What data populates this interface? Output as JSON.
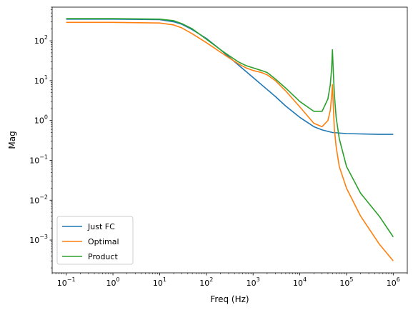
{
  "chart_data": {
    "type": "line",
    "title": "",
    "xlabel": "Freq (Hz)",
    "ylabel": "Mag",
    "xscale": "log",
    "yscale": "log",
    "xlim": [
      0.05,
      2000000
    ],
    "ylim": [
      0.00015,
      700
    ],
    "x_ticks": [
      {
        "value": 0.1,
        "base": "10",
        "exp": "−1"
      },
      {
        "value": 1,
        "base": "10",
        "exp": "0"
      },
      {
        "value": 10,
        "base": "10",
        "exp": "1"
      },
      {
        "value": 100,
        "base": "10",
        "exp": "2"
      },
      {
        "value": 1000,
        "base": "10",
        "exp": "3"
      },
      {
        "value": 10000,
        "base": "10",
        "exp": "4"
      },
      {
        "value": 100000,
        "base": "10",
        "exp": "5"
      },
      {
        "value": 1000000,
        "base": "10",
        "exp": "6"
      }
    ],
    "y_ticks": [
      {
        "value": 0.001,
        "base": "10",
        "exp": "−3"
      },
      {
        "value": 0.01,
        "base": "10",
        "exp": "−2"
      },
      {
        "value": 0.1,
        "base": "10",
        "exp": "−1"
      },
      {
        "value": 1,
        "base": "10",
        "exp": "0"
      },
      {
        "value": 10,
        "base": "10",
        "exp": "1"
      },
      {
        "value": 100,
        "base": "10",
        "exp": "2"
      }
    ],
    "grid": false,
    "legend_position": "lower-left",
    "series": [
      {
        "name": "Just FC",
        "color": "#1f77b4",
        "x": [
          0.1,
          1,
          10,
          20,
          30,
          50,
          100,
          200,
          300,
          500,
          1000,
          2000,
          3000,
          5000,
          10000,
          20000,
          30000,
          50000,
          100000,
          200000,
          500000,
          1000000
        ],
        "y": [
          350,
          350,
          340,
          300,
          260,
          190,
          115,
          60,
          40,
          24,
          12,
          6,
          4,
          2.3,
          1.2,
          0.7,
          0.58,
          0.5,
          0.47,
          0.46,
          0.45,
          0.45
        ]
      },
      {
        "name": "Optimal",
        "color": "#ff7f0e",
        "x": [
          0.1,
          1,
          10,
          20,
          30,
          50,
          100,
          200,
          300,
          500,
          700,
          1000,
          1500,
          2000,
          3000,
          5000,
          10000,
          20000,
          30000,
          40000,
          45000,
          48000,
          50000,
          52000,
          55000,
          60000,
          70000,
          100000,
          200000,
          500000,
          1000000
        ],
        "y": [
          290,
          290,
          280,
          250,
          210,
          150,
          90,
          52,
          38,
          26,
          21,
          18,
          16,
          14,
          10,
          5.5,
          2.2,
          0.85,
          0.7,
          1.0,
          1.8,
          4.0,
          8.0,
          2.5,
          0.6,
          0.22,
          0.07,
          0.02,
          0.004,
          0.0008,
          0.0003
        ]
      },
      {
        "name": "Product",
        "color": "#2ca02c",
        "x": [
          0.1,
          1,
          10,
          20,
          30,
          50,
          100,
          200,
          300,
          500,
          700,
          1000,
          1500,
          2000,
          3000,
          5000,
          10000,
          20000,
          30000,
          40000,
          45000,
          48000,
          50000,
          52000,
          55000,
          60000,
          70000,
          100000,
          200000,
          500000,
          1000000
        ],
        "y": [
          360,
          360,
          350,
          320,
          270,
          200,
          110,
          60,
          43,
          29,
          24,
          21,
          18,
          16,
          11,
          6.5,
          3.0,
          1.7,
          1.7,
          3.5,
          8.0,
          20,
          60,
          18,
          4.5,
          1.2,
          0.35,
          0.07,
          0.015,
          0.004,
          0.0012
        ]
      }
    ]
  }
}
